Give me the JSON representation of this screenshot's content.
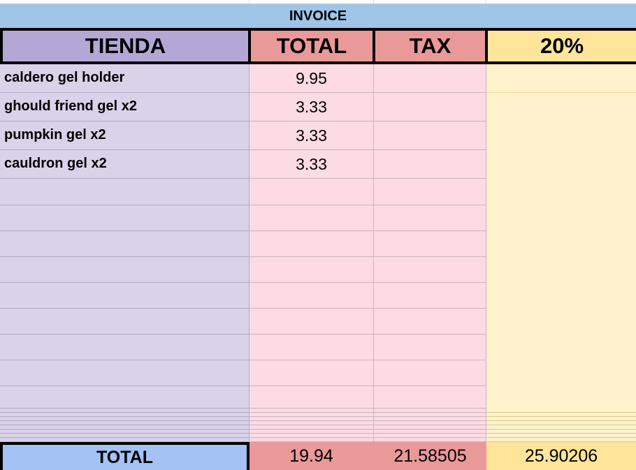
{
  "title": "INVOICE",
  "headers": [
    "TIENDA",
    "TOTAL",
    "TAX",
    "20%"
  ],
  "rows": [
    {
      "item": "caldero gel holder",
      "total": "9.95"
    },
    {
      "item": "ghould friend gel x2",
      "total": "3.33"
    },
    {
      "item": "pumpkin gel x2",
      "total": "3.33"
    },
    {
      "item": "cauldron gel x2",
      "total": "3.33"
    }
  ],
  "totals": {
    "label": "TOTAL",
    "total": "19.94",
    "tax": "21.58505",
    "pct": "25.90206"
  },
  "colors": {
    "title_bg": "#9fc5e8",
    "tienda": "#b4a7d6",
    "total_tax": "#ea9999",
    "pct": "#ffe599",
    "total_label": "#a4c2f4"
  }
}
